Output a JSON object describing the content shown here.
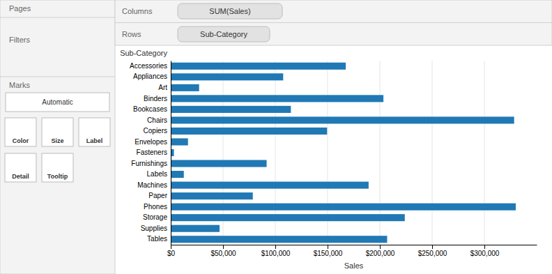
{
  "chart_data": {
    "type": "bar",
    "orientation": "horizontal",
    "categories": [
      "Accessories",
      "Appliances",
      "Art",
      "Binders",
      "Bookcases",
      "Chairs",
      "Copiers",
      "Envelopes",
      "Fasteners",
      "Furnishings",
      "Labels",
      "Machines",
      "Paper",
      "Phones",
      "Storage",
      "Supplies",
      "Tables"
    ],
    "values": [
      167380,
      107532,
      27119,
      203413,
      114880,
      328449,
      149528,
      16476,
      3024,
      91705,
      12486,
      189239,
      78479,
      330007,
      223844,
      46674,
      206966
    ],
    "color": "#2079b4",
    "xlabel": "Sales",
    "ylabel": "Sub-Category",
    "xlim": [
      0,
      350000
    ],
    "xticks": [
      {
        "value": 0,
        "label": "$0"
      },
      {
        "value": 50000,
        "label": "$50,000"
      },
      {
        "value": 100000,
        "label": "$100,000"
      },
      {
        "value": 150000,
        "label": "$150,000"
      },
      {
        "value": 200000,
        "label": "$200,000"
      },
      {
        "value": 250000,
        "label": "$250,000"
      },
      {
        "value": 300000,
        "label": "$300,000"
      }
    ],
    "grid": true,
    "annotations": [
      "Pages",
      "Filters",
      "Marks",
      "Automatic",
      "Color",
      "Size",
      "Label",
      "Detail",
      "Tooltip",
      "Columns",
      "SUM(Sales)",
      "Rows",
      "Sub-Category"
    ]
  }
}
